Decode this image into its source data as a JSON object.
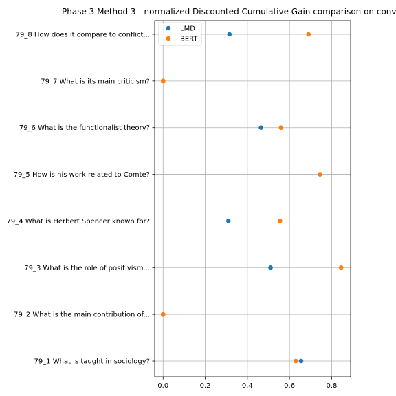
{
  "chart_data": {
    "type": "scatter",
    "title": "Phase 3 Method 3 - normalized Discounted Cumulative Gain comparison on conv",
    "xlabel": "",
    "ylabel": "",
    "xlim": [
      -0.04,
      0.89
    ],
    "xticks": [
      "0.0",
      "0.2",
      "0.4",
      "0.6",
      "0.8"
    ],
    "xtick_values": [
      0.0,
      0.2,
      0.4,
      0.6,
      0.8
    ],
    "grid": true,
    "legend_position": "top-left",
    "categories": [
      "79_1 What is taught in sociology?",
      "79_2 What is the main contribution of...",
      "79_3 What is the role of positivism...",
      "79_4 What is Herbert Spencer known for?",
      "79_5 How is his work related to Comte?",
      "79_6 What is the functionalist theory?",
      "79_7 What is its main criticism?",
      "79_8 How does it compare to conflict..."
    ],
    "series": [
      {
        "name": "LMD",
        "color": "#1f77b4",
        "values": [
          0.655,
          0.0,
          0.51,
          0.31,
          0.745,
          0.465,
          0.0,
          0.315
        ]
      },
      {
        "name": "BERT",
        "color": "#ff7f0e",
        "values": [
          0.63,
          0.0,
          0.845,
          0.555,
          0.745,
          0.56,
          0.0,
          0.69
        ]
      }
    ]
  }
}
